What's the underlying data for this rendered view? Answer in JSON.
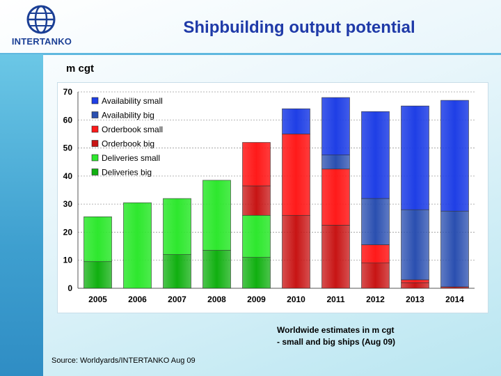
{
  "header": {
    "logo_text": "INTERTANKO",
    "title": "Shipbuilding output potential"
  },
  "colors": {
    "availability_small": "#1f3fe6",
    "availability_big": "#2a4fb0",
    "orderbook_small": "#ff1a1a",
    "orderbook_big": "#c81414",
    "deliveries_small": "#2ee82e",
    "deliveries_big": "#10b010",
    "title": "#1f3aa8"
  },
  "unit_label": "m cgt",
  "footnote": {
    "line1": "Worldwide estimates in m cgt",
    "line2": "- small and big ships (Aug 09)"
  },
  "source": "Source: Worldyards/INTERTANKO Aug 09",
  "chart_data": {
    "type": "bar",
    "stacked": true,
    "categories": [
      "2005",
      "2006",
      "2007",
      "2008",
      "2009",
      "2010",
      "2011",
      "2012",
      "2013",
      "2014"
    ],
    "ylim": [
      0,
      70
    ],
    "yticks": [
      0,
      10,
      20,
      30,
      40,
      50,
      60,
      70
    ],
    "grid": true,
    "legend_position": "top-left",
    "series": [
      {
        "name": "Deliveries big",
        "key": "deliveries_big",
        "values": [
          9.5,
          0,
          12,
          13.5,
          11,
          0,
          0,
          0,
          0,
          0
        ]
      },
      {
        "name": "Deliveries small",
        "key": "deliveries_small",
        "values": [
          16,
          30.5,
          20,
          25,
          15,
          0,
          0,
          0,
          0,
          0
        ]
      },
      {
        "name": "Orderbook big",
        "key": "orderbook_big",
        "values": [
          0,
          0,
          0,
          0,
          10.5,
          26,
          22.5,
          9,
          2,
          0.5
        ]
      },
      {
        "name": "Orderbook small",
        "key": "orderbook_small",
        "values": [
          0,
          0,
          0,
          0,
          15.5,
          29,
          20,
          6.5,
          1,
          0
        ]
      },
      {
        "name": "Availability big",
        "key": "availability_big",
        "values": [
          0,
          0,
          0,
          0,
          0,
          0,
          5,
          16.5,
          25,
          27
        ]
      },
      {
        "name": "Availability small",
        "key": "availability_small",
        "values": [
          0,
          0,
          0,
          0,
          0,
          9,
          20.5,
          31,
          37,
          39.5
        ]
      }
    ],
    "legend_order": [
      "Availability small",
      "Availability big",
      "Orderbook small",
      "Orderbook big",
      "Deliveries small",
      "Deliveries big"
    ]
  }
}
